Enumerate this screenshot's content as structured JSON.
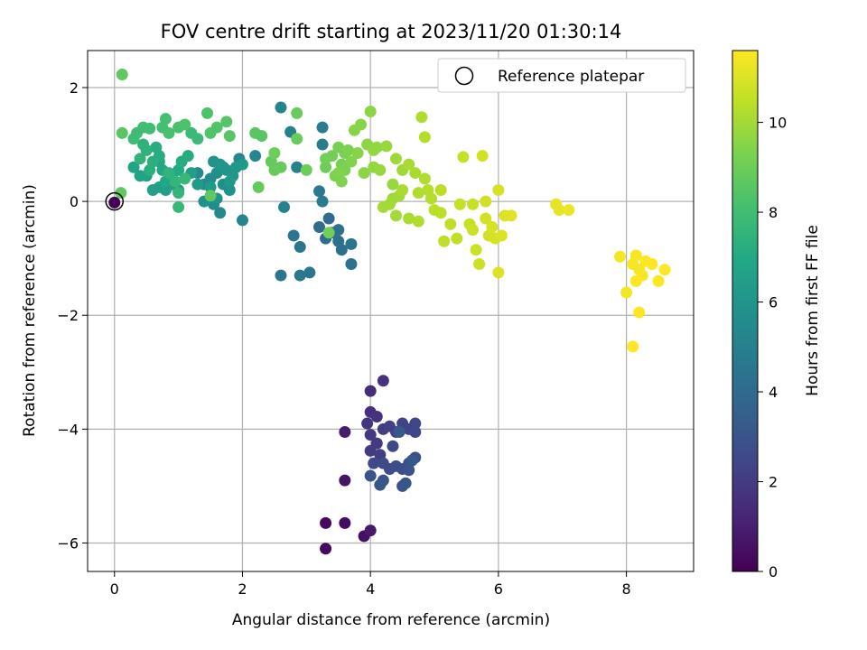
{
  "chart_data": {
    "type": "scatter",
    "title": "FOV centre drift starting at 2023/11/20 01:30:14",
    "xlabel": "Angular distance from reference (arcmin)",
    "ylabel": "Rotation from reference (arcmin)",
    "xlim": [
      -0.42,
      9.05
    ],
    "ylim": [
      -6.5,
      2.65
    ],
    "xticks": [
      0,
      2,
      4,
      6,
      8
    ],
    "yticks": [
      -6,
      -4,
      -2,
      0,
      2
    ],
    "grid": true,
    "legend": {
      "placement": "top-right",
      "entries": [
        "Reference platepar"
      ]
    },
    "colorbar": {
      "label": "Hours from first FF file",
      "range": [
        0,
        11.6
      ],
      "ticks": [
        0,
        2,
        4,
        6,
        8,
        10
      ],
      "colormap": "viridis"
    },
    "reference_point": {
      "x": 0,
      "y": 0
    },
    "points": [
      [
        0.0,
        -0.02,
        0.0
      ],
      [
        3.3,
        -5.65,
        0.3
      ],
      [
        3.3,
        -6.1,
        0.3
      ],
      [
        3.6,
        -5.65,
        0.4
      ],
      [
        3.9,
        -5.88,
        0.5
      ],
      [
        3.6,
        -4.9,
        0.6
      ],
      [
        3.6,
        -4.05,
        0.9
      ],
      [
        4.0,
        -5.78,
        0.8
      ],
      [
        4.0,
        -3.33,
        1.5
      ],
      [
        4.0,
        -3.7,
        1.6
      ],
      [
        4.1,
        -3.78,
        1.7
      ],
      [
        4.2,
        -3.15,
        1.7
      ],
      [
        3.95,
        -3.9,
        1.8
      ],
      [
        4.0,
        -4.1,
        1.9
      ],
      [
        4.1,
        -4.25,
        2.0
      ],
      [
        4.0,
        -4.38,
        2.0
      ],
      [
        4.15,
        -4.45,
        2.1
      ],
      [
        4.2,
        -4.0,
        2.1
      ],
      [
        4.3,
        -3.95,
        2.2
      ],
      [
        4.4,
        -4.05,
        2.2
      ],
      [
        4.5,
        -3.9,
        2.3
      ],
      [
        4.6,
        -4.0,
        2.3
      ],
      [
        4.7,
        -3.9,
        2.4
      ],
      [
        4.7,
        -4.05,
        2.4
      ],
      [
        4.35,
        -4.3,
        2.5
      ],
      [
        4.05,
        -4.6,
        2.5
      ],
      [
        4.2,
        -4.6,
        2.6
      ],
      [
        4.3,
        -4.7,
        2.6
      ],
      [
        4.4,
        -4.65,
        2.7
      ],
      [
        4.5,
        -4.7,
        2.7
      ],
      [
        4.6,
        -4.6,
        2.8
      ],
      [
        4.7,
        -4.5,
        2.8
      ],
      [
        4.6,
        -4.72,
        2.9
      ],
      [
        4.5,
        -5.0,
        2.9
      ],
      [
        4.2,
        -4.9,
        3.0
      ],
      [
        4.0,
        -4.82,
        3.0
      ],
      [
        4.15,
        -4.98,
        3.1
      ],
      [
        4.55,
        -4.95,
        3.1
      ],
      [
        4.45,
        -4.05,
        3.2
      ],
      [
        4.65,
        -4.55,
        3.2
      ],
      [
        3.35,
        -0.3,
        4.0
      ],
      [
        3.2,
        -0.45,
        4.1
      ],
      [
        3.3,
        -0.65,
        4.1
      ],
      [
        3.5,
        -0.7,
        4.2
      ],
      [
        3.55,
        -0.85,
        4.2
      ],
      [
        3.5,
        -0.5,
        4.3
      ],
      [
        3.4,
        -0.55,
        4.3
      ],
      [
        3.7,
        -1.1,
        4.3
      ],
      [
        3.7,
        -0.75,
        4.4
      ],
      [
        2.6,
        -1.3,
        4.4
      ],
      [
        2.8,
        -0.6,
        4.5
      ],
      [
        2.9,
        -0.8,
        4.5
      ],
      [
        2.9,
        -1.3,
        4.6
      ],
      [
        3.05,
        -1.25,
        4.6
      ],
      [
        3.2,
        0.18,
        4.7
      ],
      [
        3.25,
        0.0,
        4.8
      ],
      [
        3.25,
        1.0,
        4.8
      ],
      [
        3.25,
        1.3,
        4.9
      ],
      [
        2.75,
        1.22,
        5.0
      ],
      [
        2.85,
        0.6,
        5.0
      ],
      [
        2.65,
        -0.1,
        5.1
      ],
      [
        2.0,
        -0.33,
        5.2
      ],
      [
        2.6,
        1.65,
        5.2
      ],
      [
        2.2,
        0.8,
        5.3
      ],
      [
        1.95,
        0.75,
        5.3
      ],
      [
        1.7,
        0.6,
        5.4
      ],
      [
        1.65,
        -0.2,
        5.4
      ],
      [
        1.55,
        -0.05,
        5.5
      ],
      [
        1.3,
        0.5,
        5.5
      ],
      [
        1.4,
        0.3,
        5.6
      ],
      [
        1.5,
        0.4,
        5.6
      ],
      [
        1.6,
        0.5,
        5.7
      ],
      [
        1.7,
        0.3,
        5.7
      ],
      [
        1.8,
        0.2,
        5.8
      ],
      [
        1.4,
        0.0,
        5.8
      ],
      [
        1.6,
        0.05,
        5.9
      ],
      [
        1.55,
        0.7,
        5.9
      ],
      [
        1.65,
        0.65,
        6.0
      ],
      [
        1.75,
        0.55,
        6.0
      ],
      [
        1.85,
        0.45,
        6.1
      ],
      [
        1.9,
        0.6,
        6.1
      ],
      [
        2.0,
        0.65,
        6.2
      ],
      [
        1.8,
        0.35,
        6.2
      ],
      [
        1.5,
        0.25,
        6.3
      ],
      [
        1.3,
        0.3,
        6.3
      ],
      [
        1.2,
        0.5,
        6.4
      ],
      [
        1.0,
        0.2,
        6.4
      ],
      [
        0.9,
        0.3,
        6.5
      ],
      [
        0.8,
        0.2,
        6.5
      ],
      [
        0.7,
        0.25,
        6.6
      ],
      [
        0.6,
        0.2,
        6.6
      ],
      [
        0.5,
        0.45,
        6.7
      ],
      [
        0.4,
        0.45,
        6.7
      ],
      [
        0.3,
        0.6,
        6.8
      ],
      [
        0.7,
        0.7,
        6.8
      ],
      [
        0.75,
        0.55,
        6.9
      ],
      [
        0.8,
        0.35,
        6.9
      ],
      [
        0.9,
        0.45,
        7.0
      ],
      [
        1.0,
        0.55,
        7.0
      ],
      [
        1.05,
        0.7,
        7.1
      ],
      [
        1.15,
        0.8,
        7.1
      ],
      [
        0.7,
        0.8,
        7.2
      ],
      [
        0.65,
        0.95,
        7.2
      ],
      [
        0.6,
        0.7,
        7.3
      ],
      [
        0.55,
        0.55,
        7.3
      ],
      [
        0.5,
        0.9,
        7.4
      ],
      [
        0.45,
        1.0,
        7.4
      ],
      [
        0.4,
        0.75,
        7.5
      ],
      [
        0.85,
        0.5,
        7.5
      ],
      [
        0.95,
        0.35,
        7.6
      ],
      [
        1.0,
        0.15,
        7.6
      ],
      [
        1.0,
        -0.1,
        7.7
      ],
      [
        1.1,
        0.4,
        7.7
      ],
      [
        1.2,
        1.2,
        7.8
      ],
      [
        1.3,
        1.1,
        7.8
      ],
      [
        0.3,
        1.1,
        7.9
      ],
      [
        0.35,
        1.2,
        7.9
      ],
      [
        0.45,
        1.3,
        8.0
      ],
      [
        0.55,
        1.28,
        8.0
      ],
      [
        0.75,
        1.3,
        8.1
      ],
      [
        0.8,
        1.45,
        8.1
      ],
      [
        0.85,
        1.2,
        8.2
      ],
      [
        1.0,
        1.3,
        8.2
      ],
      [
        1.1,
        1.35,
        8.3
      ],
      [
        1.45,
        1.55,
        8.3
      ],
      [
        1.5,
        1.2,
        8.4
      ],
      [
        1.6,
        1.3,
        8.4
      ],
      [
        1.75,
        1.4,
        8.5
      ],
      [
        1.8,
        1.15,
        8.5
      ],
      [
        2.2,
        1.2,
        8.6
      ],
      [
        2.3,
        1.15,
        8.6
      ],
      [
        0.12,
        1.2,
        8.6
      ],
      [
        0.1,
        0.15,
        8.7
      ],
      [
        0.12,
        2.23,
        8.7
      ],
      [
        1.5,
        0.1,
        8.7
      ],
      [
        2.25,
        0.25,
        8.8
      ],
      [
        2.6,
        0.6,
        8.8
      ],
      [
        2.45,
        0.7,
        8.8
      ],
      [
        2.5,
        0.55,
        8.9
      ],
      [
        2.85,
        1.1,
        8.9
      ],
      [
        2.85,
        1.55,
        8.9
      ],
      [
        2.5,
        0.85,
        9.0
      ],
      [
        3.0,
        0.55,
        9.0
      ],
      [
        3.3,
        0.6,
        9.0
      ],
      [
        3.3,
        0.75,
        9.1
      ],
      [
        3.35,
        -0.55,
        9.1
      ],
      [
        3.4,
        0.8,
        9.1
      ],
      [
        3.5,
        0.95,
        9.2
      ],
      [
        3.55,
        0.65,
        9.2
      ],
      [
        3.6,
        0.85,
        9.2
      ],
      [
        3.45,
        0.45,
        9.3
      ],
      [
        3.6,
        0.55,
        9.3
      ],
      [
        3.65,
        0.9,
        9.3
      ],
      [
        3.7,
        0.7,
        9.4
      ],
      [
        3.55,
        0.35,
        9.4
      ],
      [
        3.5,
        0.5,
        9.4
      ],
      [
        3.8,
        0.85,
        9.5
      ],
      [
        3.85,
        1.35,
        9.5
      ],
      [
        3.75,
        1.25,
        9.5
      ],
      [
        3.9,
        0.5,
        9.6
      ],
      [
        3.95,
        1.0,
        9.6
      ],
      [
        4.0,
        1.58,
        9.6
      ],
      [
        4.05,
        0.9,
        9.7
      ],
      [
        4.1,
        0.95,
        9.7
      ],
      [
        4.05,
        0.6,
        9.7
      ],
      [
        4.15,
        0.55,
        9.8
      ],
      [
        4.25,
        0.97,
        9.8
      ],
      [
        4.35,
        0.3,
        9.8
      ],
      [
        4.5,
        0.55,
        9.9
      ],
      [
        4.4,
        0.75,
        9.9
      ],
      [
        4.35,
        0.05,
        9.9
      ],
      [
        4.3,
        -0.05,
        10.0
      ],
      [
        4.4,
        -0.25,
        10.0
      ],
      [
        4.45,
        0.1,
        10.0
      ],
      [
        4.5,
        0.2,
        10.1
      ],
      [
        4.6,
        0.65,
        10.1
      ],
      [
        4.7,
        0.5,
        10.1
      ],
      [
        4.75,
        0.15,
        10.2
      ],
      [
        4.85,
        0.4,
        10.2
      ],
      [
        4.8,
        1.48,
        10.2
      ],
      [
        4.85,
        1.13,
        10.3
      ],
      [
        4.9,
        0.2,
        10.3
      ],
      [
        4.95,
        0.05,
        10.3
      ],
      [
        5.0,
        -0.15,
        10.4
      ],
      [
        5.1,
        -0.2,
        10.4
      ],
      [
        5.1,
        0.2,
        10.4
      ],
      [
        5.15,
        -0.7,
        10.5
      ],
      [
        5.25,
        -0.4,
        10.5
      ],
      [
        5.35,
        -0.65,
        10.5
      ],
      [
        5.4,
        -0.05,
        10.6
      ],
      [
        5.45,
        0.78,
        10.6
      ],
      [
        5.55,
        -0.4,
        10.6
      ],
      [
        5.6,
        -0.5,
        10.7
      ],
      [
        5.65,
        -0.85,
        10.7
      ],
      [
        5.7,
        -1.1,
        10.7
      ],
      [
        5.75,
        0.8,
        10.8
      ],
      [
        5.8,
        -0.3,
        10.8
      ],
      [
        5.85,
        -0.6,
        10.8
      ],
      [
        5.9,
        -0.45,
        10.9
      ],
      [
        5.95,
        -0.65,
        10.9
      ],
      [
        6.0,
        0.2,
        10.9
      ],
      [
        6.05,
        -0.6,
        11.0
      ],
      [
        6.0,
        -1.25,
        11.0
      ],
      [
        6.1,
        -0.25,
        11.0
      ],
      [
        6.2,
        -0.25,
        11.1
      ],
      [
        4.2,
        -0.1,
        10.0
      ],
      [
        4.6,
        -0.3,
        10.1
      ],
      [
        4.75,
        -0.35,
        10.2
      ],
      [
        5.6,
        -0.05,
        10.6
      ],
      [
        5.8,
        0.0,
        10.8
      ],
      [
        6.9,
        -0.05,
        11.2
      ],
      [
        6.95,
        -0.15,
        11.2
      ],
      [
        7.1,
        -0.15,
        11.3
      ],
      [
        7.9,
        -0.97,
        11.4
      ],
      [
        8.0,
        -1.6,
        11.4
      ],
      [
        8.1,
        -1.1,
        11.5
      ],
      [
        8.15,
        -0.95,
        11.5
      ],
      [
        8.2,
        -1.2,
        11.5
      ],
      [
        8.25,
        -1.3,
        11.5
      ],
      [
        8.3,
        -1.05,
        11.6
      ],
      [
        8.4,
        -1.1,
        11.6
      ],
      [
        8.5,
        -1.4,
        11.6
      ],
      [
        8.6,
        -1.2,
        11.6
      ],
      [
        8.15,
        -1.4,
        11.6
      ],
      [
        8.2,
        -1.95,
        11.6
      ],
      [
        8.1,
        -2.55,
        11.6
      ]
    ]
  }
}
